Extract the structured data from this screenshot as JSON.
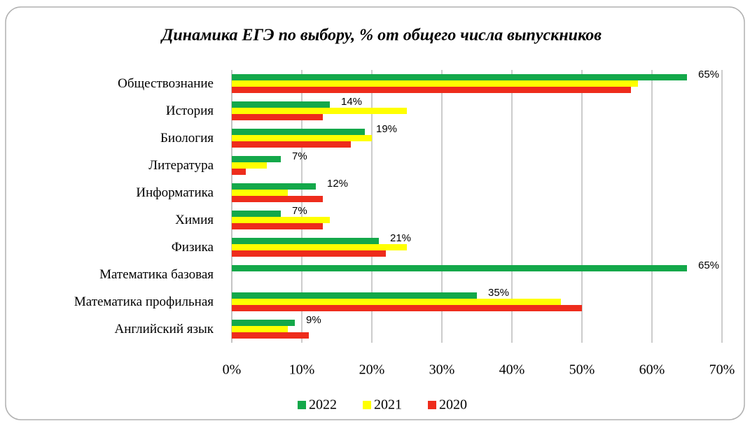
{
  "chart_data": {
    "type": "bar",
    "orientation": "horizontal",
    "title": "Динамика ЕГЭ по выбору, % от общего числа выпускников",
    "categories": [
      "Обществознание",
      "История",
      "Биология",
      "Литература",
      "Информатика",
      "Химия",
      "Физика",
      "Математика базовая",
      "Математика профильная",
      "Английский  язык"
    ],
    "series": [
      {
        "name": "2022",
        "color": "#13a84a",
        "values": [
          65,
          14,
          19,
          7,
          12,
          7,
          21,
          65,
          35,
          9
        ],
        "value_labels": [
          "65%",
          "14%",
          "19%",
          "7%",
          "12%",
          "7%",
          "21%",
          "65%",
          "35%",
          "9%"
        ]
      },
      {
        "name": "2021",
        "color": "#ffff00",
        "values": [
          58,
          25,
          20,
          5,
          8,
          14,
          25,
          null,
          47,
          8
        ]
      },
      {
        "name": "2020",
        "color": "#ee2c1c",
        "values": [
          57,
          13,
          17,
          2,
          13,
          13,
          22,
          null,
          50,
          11
        ]
      }
    ],
    "xlim": [
      0,
      70
    ],
    "xticks": [
      {
        "value": 0,
        "label": "0%"
      },
      {
        "value": 10,
        "label": "10%"
      },
      {
        "value": 20,
        "label": "20%"
      },
      {
        "value": 30,
        "label": "30%"
      },
      {
        "value": 40,
        "label": "40%"
      },
      {
        "value": 50,
        "label": "50%"
      },
      {
        "value": 60,
        "label": "60%"
      },
      {
        "value": 70,
        "label": "70%"
      }
    ],
    "grid": true,
    "legend": "bottom"
  }
}
